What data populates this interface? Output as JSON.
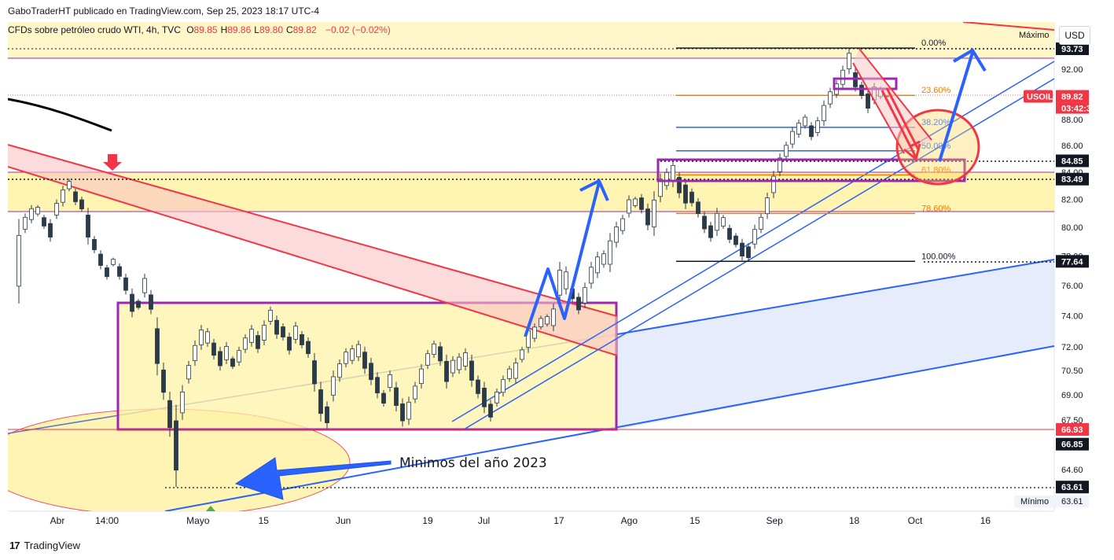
{
  "header": {
    "publisher": "GaboTraderHT publicado en TradingView.com, Sep 25, 2023 18:17 UTC-4",
    "symbol_info": "CFDs sobre petróleo crudo WTI, 4h, TVC",
    "ohlc": [
      {
        "k": "O",
        "v": "89.85"
      },
      {
        "k": "H",
        "v": "89.86"
      },
      {
        "k": "L",
        "v": "89.80"
      },
      {
        "k": "C",
        "v": "89.82"
      }
    ],
    "change": "−0.02 (−0.02%)"
  },
  "currency_button": "USD",
  "footer": {
    "brand": "TradingView"
  },
  "colors": {
    "up": "#26a69a",
    "down": "#ef5350",
    "candle": "#1d2a38",
    "purple": "#9c27b0",
    "red": "#f23645",
    "blue": "#2962ff",
    "zone": "#fff3a8",
    "orange": "#f57c00"
  },
  "chart_data": {
    "type": "candlestick",
    "x": {
      "ticks": [
        "Abr",
        "14:00",
        "Mayo",
        "15",
        "Jun",
        "19",
        "Jul",
        "17",
        "Ago",
        "15",
        "Sep",
        "18",
        "Oct",
        "16"
      ],
      "tick_dates": [
        "2023-04-01",
        "2023-04-11 14:00",
        "2023-05-01",
        "2023-05-15",
        "2023-06-01",
        "2023-06-19",
        "2023-07-01",
        "2023-07-17",
        "2023-08-01",
        "2023-08-15",
        "2023-09-01",
        "2023-09-18",
        "2023-10-01",
        "2023-10-16"
      ]
    },
    "y": {
      "scale": "log",
      "ticks": [
        "92.00",
        "90.00",
        "88.00",
        "86.00",
        "84.00",
        "82.00",
        "80.00",
        "78.00",
        "76.00",
        "74.00",
        "72.00",
        "70.50",
        "69.00",
        "67.50",
        "64.60"
      ],
      "tick_values": [
        92,
        90,
        88,
        86,
        84,
        82,
        80,
        78,
        76,
        74,
        72,
        70.5,
        69,
        67.5,
        64.6
      ]
    },
    "price_labels": [
      {
        "text": "93.73",
        "value": 93.73,
        "style": "dark"
      },
      {
        "text": "USOIL",
        "value": 89.82,
        "style": "red-tag"
      },
      {
        "text": "89.82",
        "value": 89.82,
        "style": "red"
      },
      {
        "text": "03:42:36",
        "value": 89.82,
        "style": "red-sub"
      },
      {
        "text": "84.85",
        "value": 84.85,
        "style": "dark"
      },
      {
        "text": "83.49",
        "value": 83.49,
        "style": "dark"
      },
      {
        "text": "77.64",
        "value": 77.64,
        "style": "dark"
      },
      {
        "text": "66.93",
        "value": 66.93,
        "style": "red"
      },
      {
        "text": "66.85",
        "value": 66.85,
        "style": "dark"
      },
      {
        "text": "63.61",
        "value": 63.61,
        "style": "dark"
      }
    ],
    "max_label": "Máximo",
    "min_label": "Mínimo",
    "min_value": "63.61",
    "fibonacci": {
      "from_date": "2023-08-11",
      "to_date": "2023-10-01",
      "levels": [
        {
          "label": "0.00%",
          "value": 93.73
        },
        {
          "label": "23.60%",
          "value": 89.9
        },
        {
          "label": "38.20%",
          "value": 87.4
        },
        {
          "label": "50.00%",
          "value": 85.6
        },
        {
          "label": "61.80%",
          "value": 83.8
        },
        {
          "label": "78.60%",
          "value": 81.0
        },
        {
          "label": "100.00%",
          "value": 77.64
        }
      ]
    },
    "annotations": [
      {
        "type": "text",
        "text": "Minimos del año 2023",
        "date": "2023-06-05",
        "value": 65.6
      }
    ],
    "candles": [
      [
        74.8,
        80.6
      ],
      [
        79.6,
        81.0
      ],
      [
        80.3,
        81.6
      ],
      [
        80.8,
        81.6
      ],
      [
        79.9,
        80.9
      ],
      [
        79.0,
        80.6
      ],
      [
        80.6,
        82.0
      ],
      [
        81.5,
        83.0
      ],
      [
        82.6,
        83.5
      ],
      [
        81.6,
        82.8
      ],
      [
        81.1,
        82.2
      ],
      [
        78.8,
        81.4
      ],
      [
        78.2,
        79.4
      ],
      [
        77.1,
        78.4
      ],
      [
        76.4,
        77.4
      ],
      [
        77.3,
        77.9
      ],
      [
        76.4,
        77.5
      ],
      [
        75.4,
        76.8
      ],
      [
        73.9,
        75.8
      ],
      [
        74.4,
        75.1
      ],
      [
        75.2,
        76.8
      ],
      [
        74.1,
        75.7
      ],
      [
        70.2,
        73.9
      ],
      [
        68.7,
        71.0
      ],
      [
        66.5,
        69.2
      ],
      [
        63.61,
        68.4
      ],
      [
        67.5,
        69.6
      ],
      [
        69.7,
        71.1
      ],
      [
        70.8,
        72.4
      ],
      [
        71.8,
        73.4
      ],
      [
        72.0,
        73.2
      ],
      [
        71.2,
        72.5
      ],
      [
        70.5,
        72.0
      ],
      [
        70.9,
        72.3
      ],
      [
        70.6,
        71.4
      ],
      [
        70.8,
        72.0
      ],
      [
        71.6,
        72.8
      ],
      [
        72.0,
        73.4
      ],
      [
        71.6,
        73.0
      ],
      [
        72.1,
        73.7
      ],
      [
        73.4,
        74.6
      ],
      [
        72.5,
        74.0
      ],
      [
        72.4,
        73.5
      ],
      [
        71.5,
        72.9
      ],
      [
        72.2,
        73.6
      ],
      [
        71.9,
        73.0
      ],
      [
        71.3,
        72.6
      ],
      [
        69.2,
        71.6
      ],
      [
        67.4,
        69.8
      ],
      [
        67.0,
        68.6
      ],
      [
        68.6,
        70.5
      ],
      [
        69.8,
        71.2
      ],
      [
        70.7,
        71.9
      ],
      [
        70.9,
        72.1
      ],
      [
        71.1,
        72.4
      ],
      [
        70.3,
        72.0
      ],
      [
        69.6,
        71.3
      ],
      [
        68.8,
        70.4
      ],
      [
        68.3,
        69.3
      ],
      [
        69.2,
        70.5
      ],
      [
        68.0,
        69.8
      ],
      [
        67.1,
        68.8
      ],
      [
        67.2,
        68.9
      ],
      [
        68.5,
        69.8
      ],
      [
        69.4,
        70.9
      ],
      [
        70.6,
        71.8
      ],
      [
        71.3,
        72.4
      ],
      [
        70.8,
        72.3
      ],
      [
        69.4,
        71.5
      ],
      [
        70.1,
        71.4
      ],
      [
        70.3,
        71.6
      ],
      [
        70.5,
        71.9
      ],
      [
        69.5,
        71.5
      ],
      [
        68.8,
        70.2
      ],
      [
        67.9,
        69.8
      ],
      [
        67.4,
        68.7
      ],
      [
        68.3,
        69.4
      ],
      [
        68.9,
        70.2
      ],
      [
        69.8,
        70.8
      ],
      [
        69.7,
        71.3
      ],
      [
        71.0,
        72.0
      ],
      [
        71.6,
        73.4
      ],
      [
        72.3,
        73.5
      ],
      [
        73.1,
        74.0
      ],
      [
        73.3,
        74.1
      ],
      [
        73.0,
        74.8
      ],
      [
        74.8,
        77.6
      ],
      [
        75.4,
        77.3
      ],
      [
        74.9,
        76.0
      ],
      [
        74.1,
        75.5
      ],
      [
        74.5,
        76.2
      ],
      [
        75.8,
        77.6
      ],
      [
        76.5,
        78.3
      ],
      [
        77.2,
        78.4
      ],
      [
        76.9,
        79.6
      ],
      [
        78.6,
        80.4
      ],
      [
        79.5,
        80.9
      ],
      [
        80.7,
        82.3
      ],
      [
        81.4,
        82.2
      ],
      [
        81.0,
        82.4
      ],
      [
        79.8,
        81.7
      ],
      [
        79.4,
        82.6
      ],
      [
        81.8,
        83.9
      ],
      [
        82.7,
        84.3
      ],
      [
        82.9,
        84.9
      ],
      [
        82.1,
        84.0
      ],
      [
        81.3,
        83.5
      ],
      [
        81.5,
        82.8
      ],
      [
        80.7,
        82.1
      ],
      [
        79.6,
        81.1
      ],
      [
        79.0,
        80.4
      ],
      [
        79.4,
        81.4
      ],
      [
        79.9,
        80.9
      ],
      [
        78.9,
        80.2
      ],
      [
        78.6,
        79.6
      ],
      [
        77.7,
        79.2
      ],
      [
        77.64,
        78.9
      ],
      [
        78.5,
        80.2
      ],
      [
        79.6,
        81.0
      ],
      [
        80.6,
        82.5
      ],
      [
        82.1,
        84.1
      ],
      [
        83.7,
        85.4
      ],
      [
        84.9,
        86.3
      ],
      [
        85.8,
        87.4
      ],
      [
        86.6,
        88.0
      ],
      [
        87.3,
        88.4
      ],
      [
        86.4,
        87.8
      ],
      [
        86.7,
        88.2
      ],
      [
        87.5,
        89.5
      ],
      [
        88.9,
        90.5
      ],
      [
        89.7,
        91.1
      ],
      [
        90.4,
        92.3
      ],
      [
        91.6,
        93.73
      ],
      [
        90.2,
        92.1
      ],
      [
        89.6,
        91.0
      ],
      [
        88.5,
        90.4
      ],
      [
        89.2,
        90.9
      ],
      [
        89.6,
        90.6
      ],
      [
        89.8,
        89.86
      ]
    ],
    "grid": false,
    "legend": "none"
  }
}
